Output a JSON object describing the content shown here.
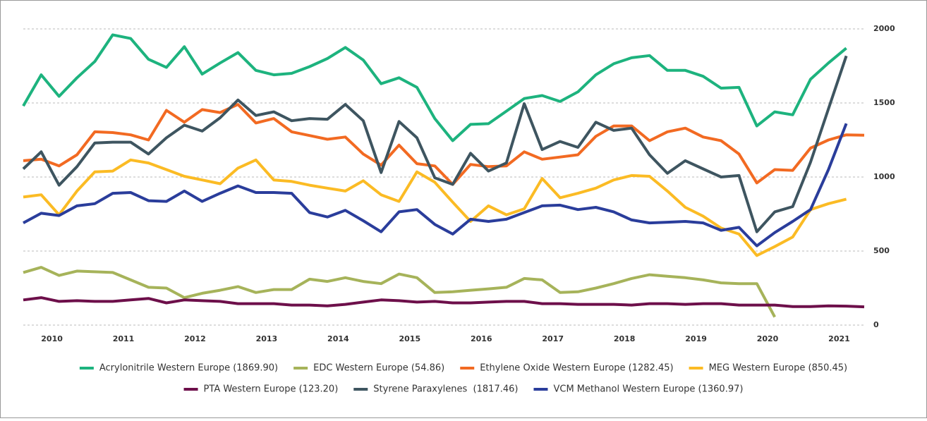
{
  "chart_data": {
    "type": "line",
    "x": [
      2009.6,
      2009.85,
      2010.1,
      2010.35,
      2010.6,
      2010.85,
      2011.1,
      2011.35,
      2011.6,
      2011.85,
      2012.1,
      2012.35,
      2012.6,
      2012.85,
      2013.1,
      2013.35,
      2013.6,
      2013.85,
      2014.1,
      2014.35,
      2014.6,
      2014.85,
      2015.1,
      2015.35,
      2015.6,
      2015.85,
      2016.1,
      2016.35,
      2016.6,
      2016.85,
      2017.1,
      2017.35,
      2017.6,
      2017.85,
      2018.1,
      2018.35,
      2018.6,
      2018.85,
      2019.1,
      2019.35,
      2019.6,
      2019.85,
      2020.1,
      2020.35,
      2020.6,
      2020.85,
      2021.1,
      2021.35
    ],
    "xlim": [
      2009.6,
      2021.35
    ],
    "xticks": [
      2010,
      2011,
      2012,
      2013,
      2014,
      2015,
      2016,
      2017,
      2018,
      2019,
      2020,
      2021
    ],
    "ylim": [
      0,
      2000
    ],
    "yticks": [
      0,
      500,
      1000,
      1500,
      2000
    ],
    "grid": true,
    "legend": "bottom",
    "series": [
      {
        "name": "Acrylonitrile Western Europe (1869.90)",
        "color": "#1db37e",
        "values": [
          1480,
          1690,
          1545,
          1670,
          1780,
          1960,
          1935,
          1795,
          1740,
          1880,
          1695,
          1770,
          1840,
          1720,
          1690,
          1700,
          1745,
          1800,
          1875,
          1790,
          1630,
          1670,
          1605,
          1395,
          1245,
          1355,
          1360,
          1445,
          1530,
          1550,
          1510,
          1575,
          1690,
          1765,
          1805,
          1820,
          1720,
          1720,
          1680,
          1600,
          1605,
          1345,
          1440,
          1420,
          1660,
          1770,
          1869.9,
          null
        ]
      },
      {
        "name": "EDC Western Europe (54.86)",
        "color": "#a6b35a",
        "values": [
          355,
          390,
          335,
          365,
          360,
          355,
          305,
          255,
          250,
          185,
          215,
          235,
          260,
          220,
          240,
          240,
          310,
          295,
          320,
          295,
          280,
          345,
          320,
          220,
          225,
          235,
          245,
          255,
          315,
          305,
          220,
          225,
          250,
          280,
          315,
          340,
          330,
          320,
          305,
          285,
          280,
          280,
          54.86,
          null,
          null,
          null,
          null,
          null
        ]
      },
      {
        "name": "Ethylene Oxide Western Europe (1282.45)",
        "color": "#f26a22",
        "values": [
          1110,
          1120,
          1075,
          1150,
          1305,
          1300,
          1285,
          1250,
          1450,
          1370,
          1455,
          1435,
          1490,
          1365,
          1395,
          1305,
          1280,
          1255,
          1270,
          1155,
          1080,
          1215,
          1090,
          1075,
          950,
          1085,
          1070,
          1075,
          1170,
          1120,
          1135,
          1150,
          1275,
          1345,
          1345,
          1245,
          1305,
          1330,
          1270,
          1245,
          1155,
          960,
          1050,
          1045,
          1195,
          1250,
          1285,
          1282.45
        ]
      },
      {
        "name": "MEG Western Europe (850.45)",
        "color": "#fbbb24",
        "values": [
          865,
          880,
          745,
          905,
          1035,
          1040,
          1115,
          1095,
          1050,
          1005,
          980,
          955,
          1060,
          1115,
          980,
          970,
          945,
          925,
          905,
          975,
          880,
          835,
          1035,
          965,
          830,
          700,
          805,
          745,
          785,
          990,
          860,
          890,
          925,
          980,
          1010,
          1005,
          905,
          795,
          735,
          655,
          615,
          470,
          530,
          595,
          780,
          820,
          850.45,
          null
        ]
      },
      {
        "name": "PTA Western Europe (123.20)",
        "color": "#6d0f4a",
        "values": [
          170,
          185,
          160,
          165,
          160,
          160,
          170,
          180,
          150,
          170,
          165,
          160,
          145,
          145,
          145,
          135,
          135,
          130,
          140,
          155,
          170,
          165,
          155,
          160,
          150,
          150,
          155,
          160,
          160,
          145,
          145,
          140,
          140,
          140,
          135,
          145,
          145,
          140,
          145,
          145,
          135,
          135,
          135,
          125,
          125,
          130,
          128,
          123.2
        ]
      },
      {
        "name": "Styrene Paraxylenes  (1817.46)",
        "color": "#3e5560",
        "values": [
          1055,
          1170,
          945,
          1070,
          1230,
          1235,
          1235,
          1155,
          1265,
          1350,
          1310,
          1400,
          1520,
          1415,
          1440,
          1380,
          1395,
          1390,
          1490,
          1380,
          1030,
          1375,
          1265,
          995,
          950,
          1160,
          1040,
          1095,
          1495,
          1185,
          1240,
          1200,
          1370,
          1315,
          1330,
          1150,
          1025,
          1110,
          1055,
          1000,
          1010,
          630,
          765,
          800,
          1100,
          1460,
          1817.46,
          null
        ]
      },
      {
        "name": "VCM Methanol Western Europe (1360.97)",
        "color": "#2a3d9b",
        "values": [
          690,
          755,
          740,
          805,
          820,
          890,
          895,
          840,
          835,
          905,
          835,
          890,
          940,
          895,
          895,
          890,
          760,
          730,
          775,
          705,
          630,
          765,
          780,
          680,
          615,
          715,
          700,
          715,
          760,
          805,
          810,
          780,
          795,
          765,
          710,
          690,
          695,
          700,
          690,
          640,
          660,
          535,
          625,
          700,
          780,
          1050,
          1360.97,
          null
        ]
      }
    ]
  }
}
